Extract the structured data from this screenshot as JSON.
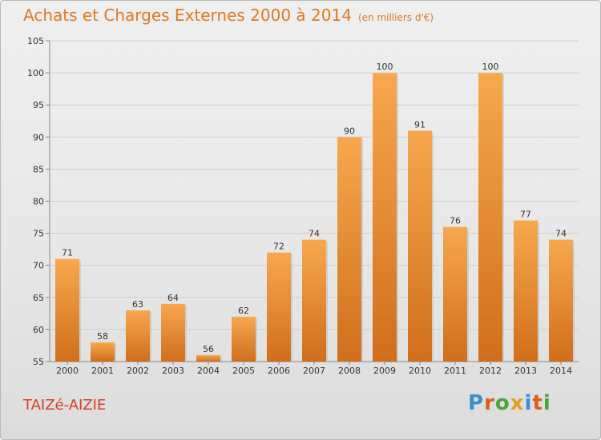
{
  "title": "Achats et Charges Externes 2000 à 2014",
  "unit": "(en milliers d'€)",
  "commune": "TAIZé-AIZIE",
  "logo": "Proxiti",
  "colors": {
    "title": "#e07a1f",
    "bar_top": "#f7a84f",
    "bar_bottom": "#d06e1c",
    "commune": "#d5411d",
    "logo": [
      "#3a8fd0",
      "#e05a1e",
      "#49a43a",
      "#e0a21e",
      "#3a8fd0",
      "#e05a1e",
      "#49a43a"
    ]
  },
  "chart_data": {
    "type": "bar",
    "categories": [
      "2000",
      "2001",
      "2002",
      "2003",
      "2004",
      "2005",
      "2006",
      "2007",
      "2008",
      "2009",
      "2010",
      "2011",
      "2012",
      "2013",
      "2014"
    ],
    "values": [
      71,
      58,
      63,
      64,
      56,
      62,
      72,
      74,
      90,
      100,
      91,
      76,
      100,
      77,
      74
    ],
    "ylim": [
      55,
      105
    ],
    "yticks": [
      55,
      60,
      65,
      70,
      75,
      80,
      85,
      90,
      95,
      100,
      105
    ],
    "grid": true
  }
}
